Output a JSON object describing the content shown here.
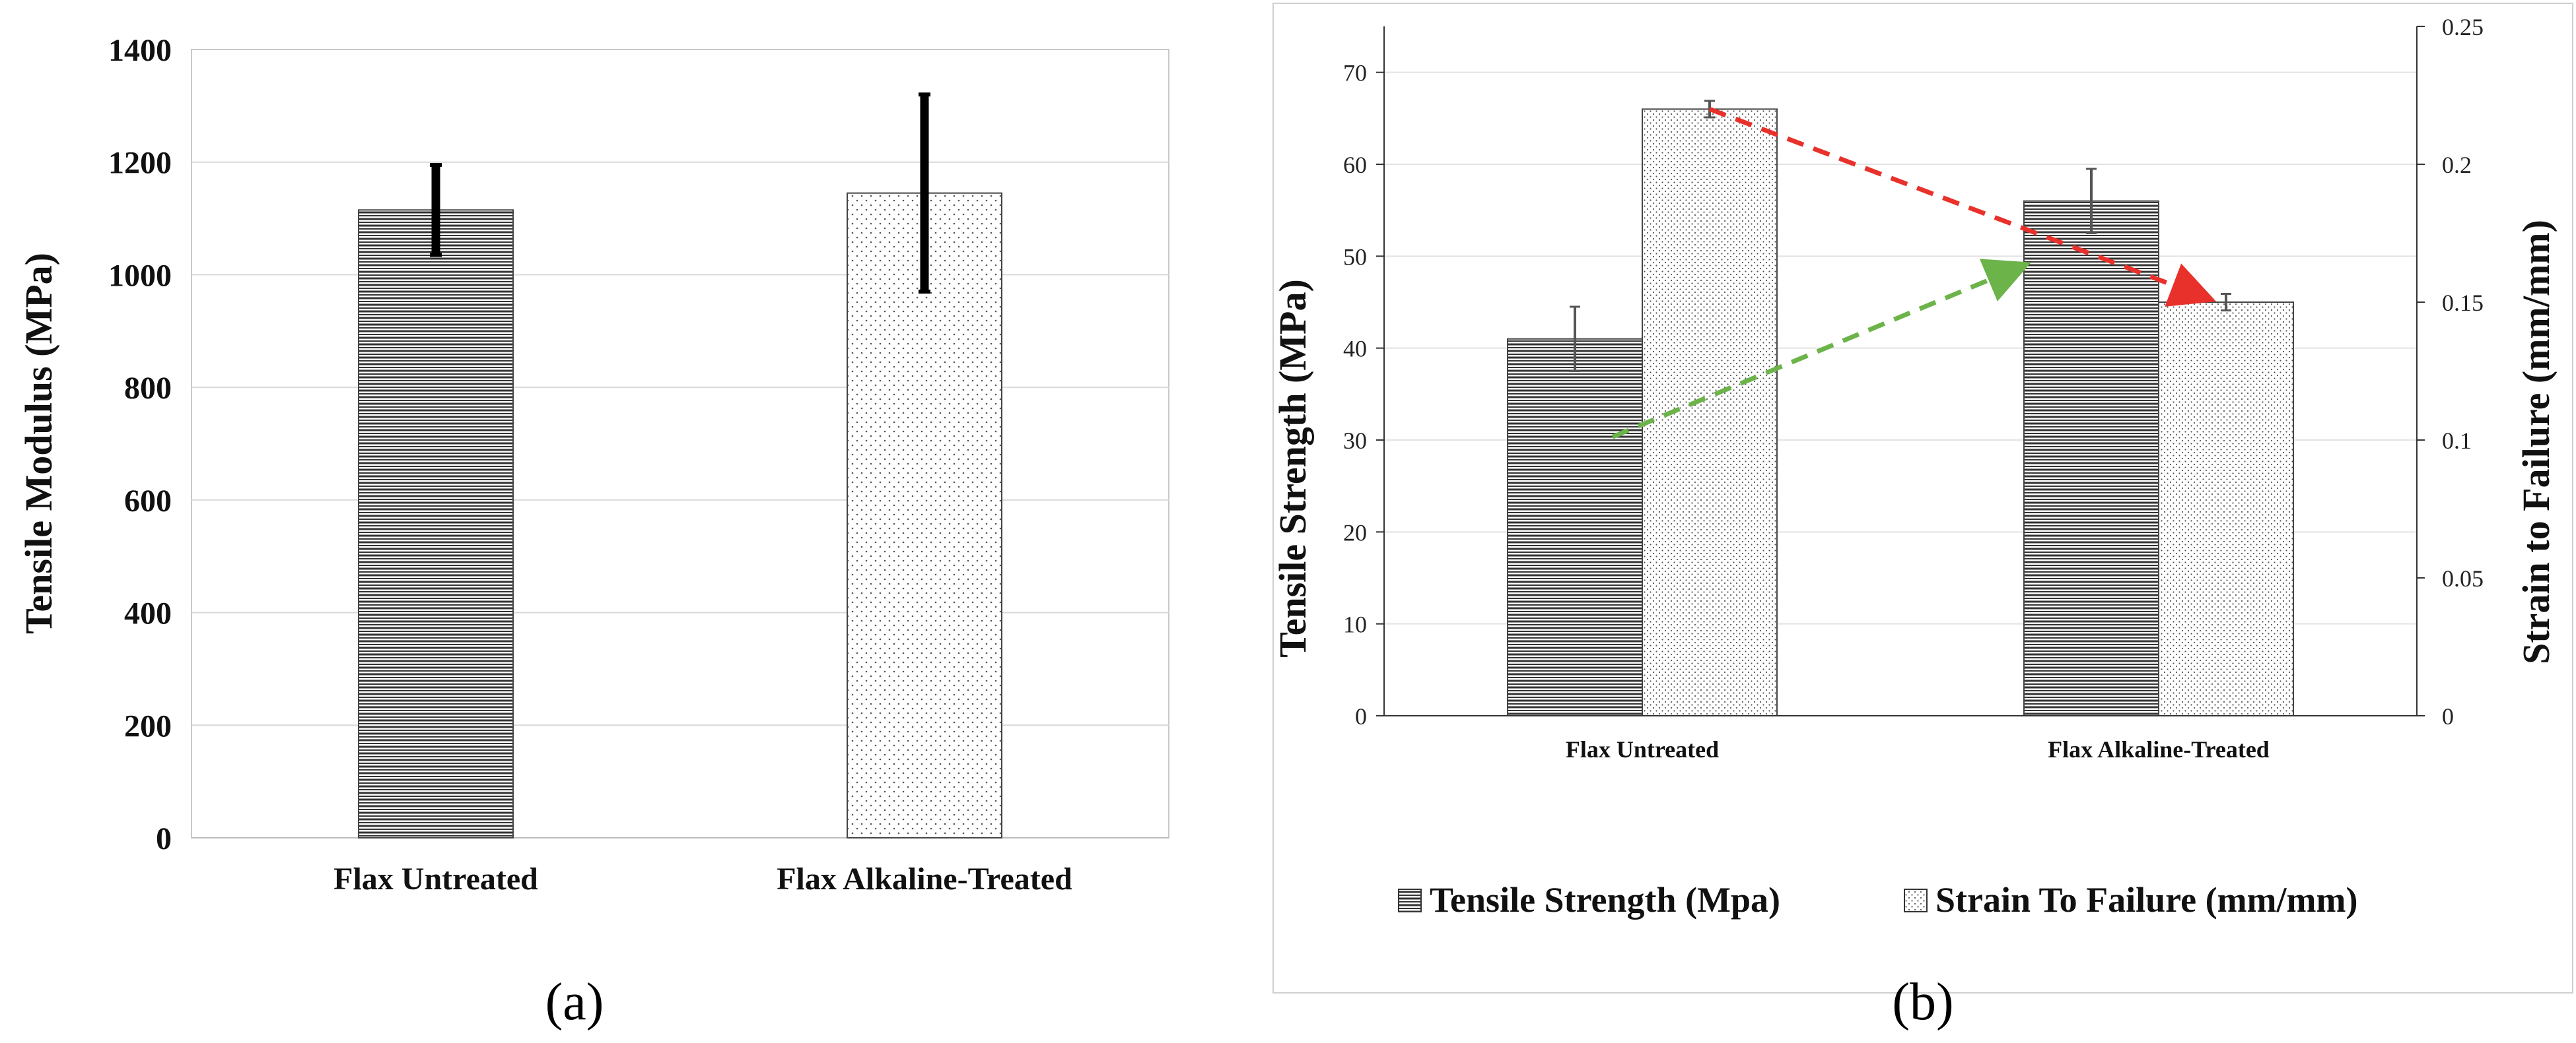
{
  "chart_data": [
    {
      "type": "bar",
      "panel_label": "(a)",
      "categories": [
        "Flax Untreated",
        "Flax Alkaline-Treated"
      ],
      "series": [
        {
          "name": "Tensile Modulus",
          "values": [
            1115,
            1145
          ],
          "errors": [
            80,
            175
          ],
          "patterns": [
            "horizontal-lines",
            "dots"
          ]
        }
      ],
      "ylabel": "Tensile Modulus (MPa)",
      "xlabel": "",
      "ylim": [
        0,
        1400
      ],
      "yticks": [
        0,
        200,
        400,
        600,
        800,
        1000,
        1200,
        1400
      ],
      "grid": true,
      "legend": "none"
    },
    {
      "type": "bar",
      "panel_label": "(b)",
      "categories": [
        "Flax Untreated",
        "Flax Alkaline-Treated"
      ],
      "series": [
        {
          "name": "Tensile Strength (Mpa)",
          "axis": "left",
          "values": [
            41,
            56
          ],
          "errors": [
            3.5,
            3.5
          ],
          "pattern": "horizontal-lines"
        },
        {
          "name": "Strain To Failure (mm/mm)",
          "axis": "right",
          "values": [
            0.22,
            0.15
          ],
          "errors": [
            0.003,
            0.003
          ],
          "pattern": "dots"
        }
      ],
      "ylabel": "Tensile Strength (MPa)",
      "ylim": [
        0,
        75
      ],
      "yticks": [
        0,
        10,
        20,
        30,
        40,
        50,
        60,
        70
      ],
      "y2label": "Strain to Failure (mm/mm)",
      "y2lim": [
        0,
        0.25
      ],
      "y2ticks": [
        "0",
        "0.05",
        "0.1",
        "0.15",
        "0.2",
        "0.25"
      ],
      "grid": true,
      "legend": "bottom",
      "annotations": [
        {
          "type": "dashed-arrow",
          "color": "#e8312a",
          "from_series": "Strain To Failure (mm/mm)",
          "from": "Flax Untreated",
          "to": "Flax Alkaline-Treated"
        },
        {
          "type": "dashed-arrow",
          "color": "#6cb34a",
          "from_series": "Tensile Strength (Mpa)",
          "from": "Flax Untreated",
          "to": "Flax Alkaline-Treated"
        }
      ]
    }
  ]
}
